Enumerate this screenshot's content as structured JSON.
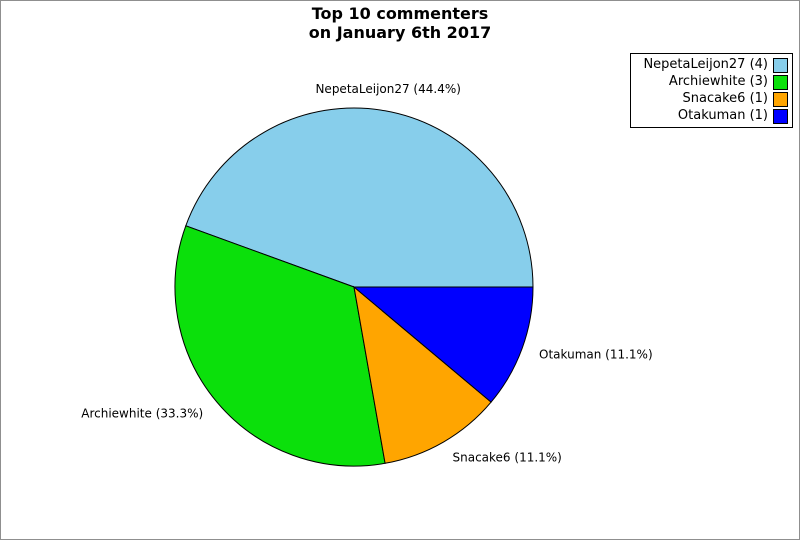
{
  "window": {
    "background_color": "#FFFFFF",
    "border_color": "#8F8F8F"
  },
  "chart_data": {
    "type": "pie",
    "title_line1": "Top 10 commenters",
    "title_line2": "on January 6th 2017",
    "start_angle_deg": 0,
    "direction": "counterclockwise",
    "total": 9,
    "edge_color": "#000000",
    "legend_position": "top-right",
    "slices": [
      {
        "name": "NepetaLeijon27",
        "count": 4,
        "pct": 44.4,
        "color": "#87CEEB",
        "callout_label": "NepetaLeijon27 (44.4%)",
        "legend_label": "NepetaLeijon27 (4)"
      },
      {
        "name": "Archiewhite",
        "count": 3,
        "pct": 33.3,
        "color": "#0BE00B",
        "callout_label": "Archiewhite (33.3%)",
        "legend_label": "Archiewhite (3)"
      },
      {
        "name": "Snacake6",
        "count": 1,
        "pct": 11.1,
        "color": "#FFA500",
        "callout_label": "Snacake6 (11.1%)",
        "legend_label": "Snacake6 (1)"
      },
      {
        "name": "Otakuman",
        "count": 1,
        "pct": 11.1,
        "color": "#0000FF",
        "callout_label": "Otakuman (11.1%)",
        "legend_label": "Otakuman (1)"
      }
    ]
  }
}
